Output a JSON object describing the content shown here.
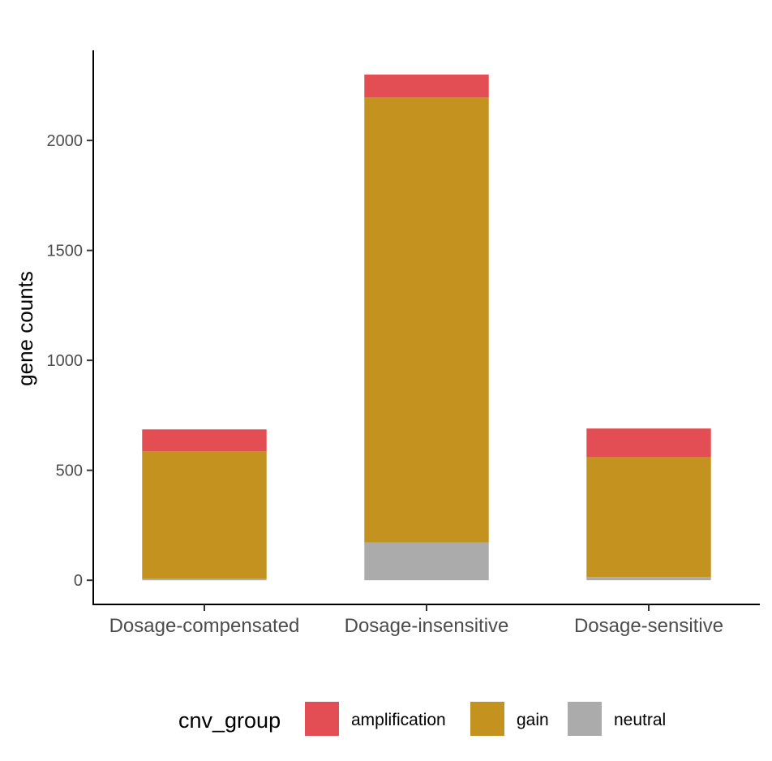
{
  "chart_data": {
    "type": "bar",
    "stacked": true,
    "categories": [
      "Dosage-compensated",
      "Dosage-insensitive",
      "Dosage-sensitive"
    ],
    "series": [
      {
        "name": "neutral",
        "values": [
          8,
          172,
          15
        ],
        "color": "#ABABAB"
      },
      {
        "name": "gain",
        "values": [
          578,
          2023,
          545
        ],
        "color": "#C4921F"
      },
      {
        "name": "amplification",
        "values": [
          100,
          105,
          130
        ],
        "color": "#E24E54"
      }
    ],
    "ylabel": "gene counts",
    "xlabel": "",
    "ylim": [
      -110,
      2410
    ],
    "yticks": [
      0,
      500,
      1000,
      1500,
      2000
    ],
    "grid": false,
    "legend": {
      "title": "cnv_group",
      "position": "bottom",
      "entries": [
        "amplification",
        "gain",
        "neutral"
      ]
    }
  }
}
